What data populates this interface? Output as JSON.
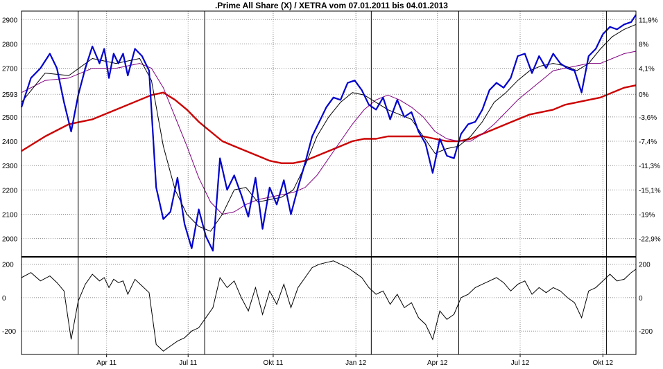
{
  "chart_data": [
    {
      "type": "line",
      "title": ".Prime All Share (X) / XETRA vom 07.01.2011 bis 04.01.2013",
      "x_tick_labels": [
        "Apr 11",
        "Jul 11",
        "Okt 11",
        "Jan 12",
        "Apr 12",
        "Jul 12",
        "Okt 12"
      ],
      "y_tick_labels_left": [
        "2900",
        "2800",
        "2700",
        "2593",
        "2500",
        "2400",
        "2300",
        "2200",
        "2100",
        "2000"
      ],
      "y_ticks_left": [
        2900,
        2800,
        2700,
        2593,
        2500,
        2400,
        2300,
        2200,
        2100,
        2000
      ],
      "y_tick_labels_right": [
        "11,9%",
        "8%",
        "4,1%",
        "0%",
        "-3,6%",
        "-7,4%",
        "-11,3%",
        "-15,1%",
        "-19%",
        "-22,9%"
      ],
      "ylim": [
        1925,
        2935
      ],
      "grid": true,
      "legend": "none",
      "colors": {
        "price": "#0000cc",
        "ma_fast": "#000000",
        "ma_mid": "#800080",
        "ma_slow": "#cc0000"
      },
      "x_index_range": [
        0,
        520
      ],
      "series": [
        {
          "style": "price",
          "x": [
            0,
            8,
            16,
            24,
            30,
            36,
            42,
            48,
            54,
            60,
            66,
            70,
            74,
            78,
            82,
            86,
            90,
            96,
            102,
            108,
            114,
            120,
            126,
            132,
            138,
            144,
            150,
            156,
            162,
            168,
            174,
            180,
            186,
            192,
            198,
            204,
            210,
            216,
            222,
            228,
            234,
            240,
            246,
            252,
            258,
            264,
            270,
            276,
            282,
            288,
            294,
            300,
            306,
            312,
            318,
            324,
            330,
            336,
            342,
            348,
            354,
            360,
            366,
            372,
            378,
            384,
            390,
            396,
            402,
            408,
            414,
            420,
            426,
            432,
            438,
            444,
            450,
            456,
            462,
            468,
            474,
            480,
            486,
            492,
            498,
            504,
            510,
            516,
            520
          ],
          "values": [
            2540,
            2660,
            2700,
            2760,
            2700,
            2560,
            2440,
            2590,
            2700,
            2790,
            2720,
            2780,
            2660,
            2760,
            2720,
            2760,
            2670,
            2780,
            2750,
            2690,
            2210,
            2080,
            2110,
            2250,
            2060,
            1960,
            2120,
            2010,
            1950,
            2330,
            2200,
            2260,
            2180,
            2090,
            2250,
            2040,
            2210,
            2140,
            2240,
            2100,
            2210,
            2310,
            2420,
            2480,
            2540,
            2580,
            2570,
            2640,
            2650,
            2610,
            2550,
            2530,
            2580,
            2490,
            2570,
            2500,
            2520,
            2440,
            2390,
            2270,
            2410,
            2340,
            2330,
            2430,
            2470,
            2480,
            2530,
            2610,
            2640,
            2620,
            2660,
            2750,
            2760,
            2680,
            2750,
            2700,
            2760,
            2720,
            2700,
            2690,
            2600,
            2750,
            2780,
            2840,
            2870,
            2860,
            2880,
            2890,
            2920
          ]
        },
        {
          "style": "ma_fast",
          "x": [
            0,
            20,
            40,
            60,
            80,
            100,
            110,
            120,
            130,
            140,
            150,
            160,
            170,
            180,
            190,
            200,
            210,
            220,
            230,
            240,
            250,
            260,
            270,
            280,
            290,
            300,
            310,
            320,
            330,
            340,
            350,
            360,
            370,
            380,
            390,
            400,
            410,
            420,
            430,
            440,
            450,
            460,
            470,
            480,
            490,
            500,
            510,
            520
          ],
          "values": [
            2560,
            2680,
            2670,
            2740,
            2720,
            2740,
            2650,
            2380,
            2200,
            2100,
            2050,
            2030,
            2100,
            2200,
            2210,
            2150,
            2160,
            2170,
            2200,
            2300,
            2420,
            2500,
            2560,
            2600,
            2590,
            2560,
            2530,
            2510,
            2490,
            2420,
            2350,
            2370,
            2380,
            2420,
            2480,
            2560,
            2600,
            2650,
            2690,
            2710,
            2720,
            2710,
            2690,
            2720,
            2780,
            2830,
            2860,
            2880
          ]
        },
        {
          "style": "ma_mid",
          "x": [
            0,
            20,
            40,
            60,
            80,
            100,
            110,
            120,
            130,
            140,
            150,
            160,
            170,
            180,
            190,
            200,
            210,
            220,
            230,
            240,
            250,
            260,
            270,
            280,
            290,
            300,
            310,
            320,
            330,
            340,
            350,
            360,
            370,
            380,
            390,
            400,
            410,
            420,
            430,
            440,
            450,
            460,
            470,
            480,
            490,
            500,
            510,
            520
          ],
          "values": [
            2600,
            2650,
            2660,
            2700,
            2700,
            2720,
            2700,
            2620,
            2500,
            2380,
            2250,
            2150,
            2100,
            2110,
            2140,
            2160,
            2170,
            2180,
            2190,
            2210,
            2260,
            2330,
            2400,
            2470,
            2530,
            2570,
            2590,
            2570,
            2540,
            2500,
            2440,
            2410,
            2400,
            2400,
            2430,
            2470,
            2520,
            2570,
            2610,
            2650,
            2690,
            2700,
            2710,
            2720,
            2720,
            2740,
            2760,
            2770
          ]
        },
        {
          "style": "ma_slow",
          "x": [
            0,
            20,
            40,
            60,
            80,
            100,
            110,
            120,
            130,
            140,
            150,
            160,
            170,
            180,
            190,
            200,
            210,
            220,
            230,
            240,
            250,
            260,
            270,
            280,
            290,
            300,
            310,
            320,
            330,
            340,
            350,
            360,
            370,
            380,
            390,
            400,
            410,
            420,
            430,
            440,
            450,
            460,
            470,
            480,
            490,
            500,
            510,
            520
          ],
          "values": [
            2360,
            2420,
            2470,
            2490,
            2530,
            2570,
            2590,
            2600,
            2570,
            2530,
            2480,
            2440,
            2400,
            2380,
            2360,
            2340,
            2320,
            2310,
            2310,
            2320,
            2340,
            2360,
            2380,
            2400,
            2410,
            2410,
            2420,
            2420,
            2420,
            2420,
            2410,
            2400,
            2400,
            2410,
            2430,
            2450,
            2470,
            2490,
            2510,
            2520,
            2530,
            2550,
            2560,
            2570,
            2580,
            2600,
            2620,
            2630
          ]
        }
      ]
    },
    {
      "type": "line",
      "y_tick_labels_left": [
        "200",
        "0",
        "-200"
      ],
      "y_tick_labels_right": [
        "200",
        "0",
        "-200"
      ],
      "y_ticks": [
        200,
        0,
        -200
      ],
      "ylim": [
        -340,
        240
      ],
      "grid": true,
      "legend": "none",
      "colors": {
        "oscillator": "#000000"
      },
      "series": [
        {
          "style": "oscillator",
          "x": [
            0,
            8,
            16,
            24,
            30,
            36,
            42,
            48,
            54,
            60,
            66,
            70,
            74,
            78,
            82,
            86,
            90,
            96,
            102,
            108,
            114,
            120,
            126,
            132,
            138,
            144,
            150,
            156,
            162,
            168,
            174,
            180,
            186,
            192,
            198,
            204,
            210,
            216,
            222,
            228,
            234,
            240,
            246,
            252,
            258,
            264,
            270,
            276,
            282,
            288,
            294,
            300,
            306,
            312,
            318,
            324,
            330,
            336,
            342,
            348,
            354,
            360,
            366,
            372,
            378,
            384,
            390,
            396,
            402,
            408,
            414,
            420,
            426,
            432,
            438,
            444,
            450,
            456,
            462,
            468,
            474,
            480,
            486,
            492,
            498,
            504,
            510,
            516,
            520
          ],
          "values": [
            120,
            150,
            100,
            130,
            90,
            40,
            -250,
            -20,
            80,
            140,
            100,
            120,
            60,
            110,
            90,
            100,
            20,
            110,
            70,
            30,
            -280,
            -320,
            -290,
            -260,
            -240,
            -200,
            -180,
            -120,
            -60,
            120,
            60,
            100,
            0,
            -80,
            60,
            -100,
            40,
            -40,
            80,
            -60,
            60,
            120,
            180,
            200,
            210,
            220,
            200,
            180,
            150,
            120,
            60,
            20,
            40,
            -40,
            20,
            -60,
            -30,
            -120,
            -160,
            -250,
            -80,
            -130,
            -100,
            0,
            20,
            60,
            80,
            100,
            120,
            90,
            40,
            80,
            100,
            20,
            60,
            30,
            60,
            40,
            0,
            -30,
            -120,
            40,
            60,
            100,
            140,
            100,
            110,
            150,
            170
          ]
        }
      ]
    }
  ]
}
